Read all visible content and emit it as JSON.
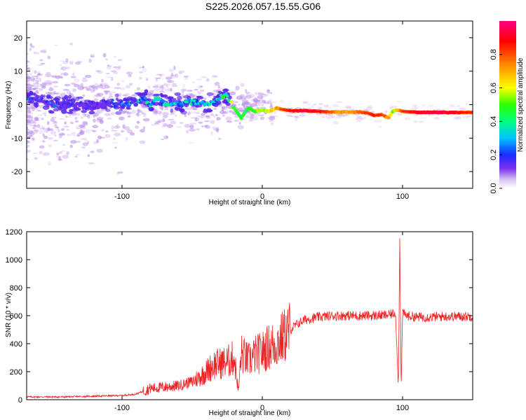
{
  "title": "S225.2026.057.15.55.G06",
  "colors": {
    "snr_line": "#ee2222",
    "frame": "#000000",
    "cloud": "#b98be8",
    "core": "#5522ee"
  },
  "chart_data": [
    {
      "type": "heatmap",
      "title": "S225.2026.057.15.55.G06",
      "xlabel": "Height of straight line (km)",
      "ylabel": "Frequency (Hz)",
      "xlim": [
        -168,
        150
      ],
      "ylim": [
        -25,
        25
      ],
      "xticks": [
        -100,
        0,
        100
      ],
      "yticks": [
        -20,
        -10,
        0,
        10,
        20
      ],
      "xtick_labels": [
        "-100",
        "0",
        "100"
      ],
      "ytick_labels": [
        "-20",
        "-10",
        "0",
        "10",
        "20"
      ],
      "colorbar": {
        "label": "Normalized spectral amplitude",
        "range": [
          0,
          1
        ],
        "ticks": [
          0.0,
          0.2,
          0.4,
          0.6,
          0.8
        ],
        "tick_labels": [
          "0.0",
          "0.2",
          "0.4",
          "0.6",
          "0.8"
        ],
        "colormap": "rainbow (white → purple → blue → cyan → green → yellow → orange → red → magenta)"
      },
      "main_ridge": {
        "description": "frequency of peak spectral amplitude vs height",
        "x": [
          -165,
          -150,
          -140,
          -130,
          -120,
          -110,
          -100,
          -90,
          -85,
          -80,
          -75,
          -70,
          -60,
          -50,
          -40,
          -35,
          -30,
          -26,
          -20,
          -15,
          -10,
          -5,
          0,
          5,
          10,
          15,
          20,
          30,
          40,
          50,
          60,
          70,
          75,
          80,
          85,
          90,
          93,
          95,
          100,
          110,
          120,
          130,
          140,
          150
        ],
        "y": [
          1.5,
          0.5,
          -0.5,
          0,
          -1,
          0.5,
          0,
          1,
          2,
          0,
          2,
          0.5,
          0,
          1,
          0,
          0.5,
          2,
          3,
          -1,
          -4,
          -1,
          -2,
          -1.5,
          -2,
          -1,
          -1.5,
          -1.8,
          -1.8,
          -2,
          -2.2,
          -2.2,
          -2.2,
          -2.5,
          -3.2,
          -3,
          -4,
          -2,
          -1.5,
          -2,
          -2.3,
          -2.3,
          -2.3,
          -2.3,
          -2.3
        ],
        "amplitude": [
          0.15,
          0.15,
          0.12,
          0.12,
          0.12,
          0.12,
          0.2,
          0.25,
          0.3,
          0.3,
          0.3,
          0.3,
          0.3,
          0.3,
          0.28,
          0.28,
          0.3,
          0.45,
          0.5,
          0.45,
          0.45,
          0.5,
          0.55,
          0.6,
          0.7,
          0.8,
          0.85,
          0.88,
          0.85,
          0.75,
          0.7,
          0.75,
          0.8,
          0.82,
          0.8,
          0.7,
          0.55,
          0.65,
          0.8,
          0.85,
          0.9,
          0.88,
          0.85,
          0.8
        ]
      }
    },
    {
      "type": "line",
      "xlabel": "Height of straight line (km)",
      "ylabel": "SNR (10 * v/v)",
      "xlim": [
        -168,
        150
      ],
      "ylim": [
        0,
        1200
      ],
      "xticks": [
        -100,
        0,
        100
      ],
      "yticks": [
        0,
        200,
        400,
        600,
        800,
        1000,
        1200
      ],
      "xtick_labels": [
        "-100",
        "0",
        "100"
      ],
      "ytick_labels": [
        "0",
        "200",
        "400",
        "600",
        "800",
        "1000",
        "1200"
      ],
      "series": [
        {
          "name": "SNR",
          "description": "mean trend; raw trace is highly noisy around it",
          "x": [
            -168,
            -140,
            -120,
            -100,
            -90,
            -85,
            -80,
            -70,
            -60,
            -50,
            -45,
            -40,
            -35,
            -30,
            -25,
            -20,
            -17,
            -15,
            -10,
            -5,
            0,
            5,
            10,
            15,
            20,
            25,
            30,
            40,
            50,
            60,
            70,
            80,
            90,
            95,
            97,
            98,
            99,
            100,
            103,
            110,
            120,
            130,
            140,
            150
          ],
          "y": [
            20,
            20,
            25,
            30,
            40,
            60,
            80,
            90,
            100,
            130,
            160,
            200,
            250,
            260,
            270,
            300,
            60,
            330,
            280,
            320,
            340,
            380,
            400,
            450,
            500,
            540,
            570,
            590,
            600,
            600,
            600,
            600,
            605,
            620,
            80,
            1180,
            60,
            620,
            600,
            590,
            590,
            595,
            595,
            595
          ]
        }
      ]
    }
  ]
}
